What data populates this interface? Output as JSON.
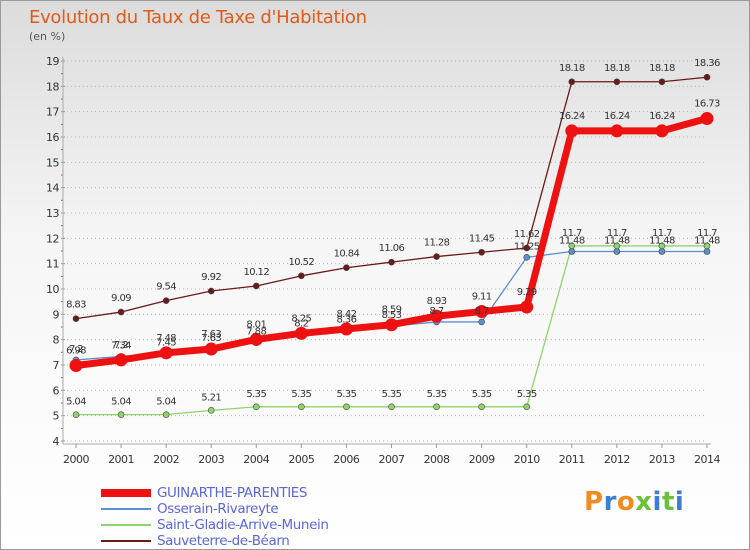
{
  "title": "Evolution du Taux de Taxe d'Habitation",
  "unit_label": "(en %)",
  "logo": {
    "letters": [
      {
        "ch": "P",
        "color": "#f08c1e"
      },
      {
        "ch": "r",
        "color": "#3b7fd4"
      },
      {
        "ch": "o",
        "color": "#f08c1e"
      },
      {
        "ch": "x",
        "color": "#6cbf3a"
      },
      {
        "ch": "i",
        "color": "#3b7fd4"
      },
      {
        "ch": "t",
        "color": "#6cbf3a"
      },
      {
        "ch": "i",
        "color": "#3b7fd4"
      }
    ]
  },
  "chart_data": {
    "type": "line",
    "x": [
      2000,
      2001,
      2002,
      2003,
      2004,
      2005,
      2006,
      2007,
      2008,
      2009,
      2010,
      2011,
      2012,
      2013,
      2014
    ],
    "ylim": [
      4,
      19
    ],
    "yticks": [
      4,
      5,
      6,
      7,
      8,
      9,
      10,
      11,
      12,
      13,
      14,
      15,
      16,
      17,
      18,
      19
    ],
    "grid": "horizontal-dotted",
    "legend_position": "bottom-left",
    "series": [
      {
        "name": "Sauveterre-de-Béarn",
        "color": "#6b1a1a",
        "values": [
          8.83,
          9.09,
          9.54,
          9.92,
          10.12,
          10.52,
          10.84,
          11.06,
          11.28,
          11.45,
          11.62,
          18.18,
          18.18,
          18.18,
          18.36
        ],
        "labels": [
          "8.83",
          "9.09",
          "9.54",
          "9.92",
          "10.12",
          "10.52",
          "10.84",
          "11.06",
          "11.28",
          "11.45",
          "11.62",
          "18.18",
          "18.18",
          "18.18",
          "18.36"
        ]
      },
      {
        "name": "Saint-Gladie-Arrive-Munein",
        "color": "#8fd46a",
        "values": [
          5.04,
          5.04,
          5.04,
          5.21,
          5.35,
          5.35,
          5.35,
          5.35,
          5.35,
          5.35,
          5.35,
          11.7,
          11.7,
          11.7,
          11.7
        ],
        "labels": [
          "5.04",
          "5.04",
          "5.04",
          "5.21",
          "5.35",
          "5.35",
          "5.35",
          "5.35",
          "5.35",
          "5.35",
          "5.35",
          "11.7",
          "11.7",
          "11.7",
          "11.7"
        ]
      },
      {
        "name": "Osserain-Rivareyte",
        "color": "#5b8fd0",
        "values": [
          7.2,
          7.34,
          7.45,
          7.63,
          7.88,
          8.2,
          8.36,
          8.53,
          8.7,
          8.7,
          11.25,
          11.48,
          11.48,
          11.48,
          11.48
        ],
        "labels": [
          "7.2",
          "7.34",
          "7.45",
          "7.63",
          "7.88",
          "8.2",
          "8.36",
          "8.53",
          "8.7",
          "8.7",
          "11.25",
          "11.48",
          "11.48",
          "11.48",
          "11.48"
        ]
      },
      {
        "name": "GUINARTHE-PARENTIES",
        "color": "#ee1111",
        "values": [
          6.98,
          7.2,
          7.48,
          7.63,
          8.01,
          8.25,
          8.42,
          8.59,
          8.93,
          9.11,
          9.29,
          16.24,
          16.24,
          16.24,
          16.73
        ],
        "labels": [
          "6.98",
          "7.2",
          "7.48",
          "7.63",
          "8.01",
          "8.25",
          "8.42",
          "8.59",
          "8.93",
          "9.11",
          "9.29",
          "16.24",
          "16.24",
          "16.24",
          "16.73"
        ]
      }
    ],
    "legend": [
      {
        "name": "GUINARTHE-PARENTIES",
        "color": "#ee1111"
      },
      {
        "name": "Osserain-Rivareyte",
        "color": "#5b8fd0"
      },
      {
        "name": "Saint-Gladie-Arrive-Munein",
        "color": "#8fd46a"
      },
      {
        "name": "Sauveterre-de-Béarn",
        "color": "#6b1a1a"
      }
    ]
  }
}
